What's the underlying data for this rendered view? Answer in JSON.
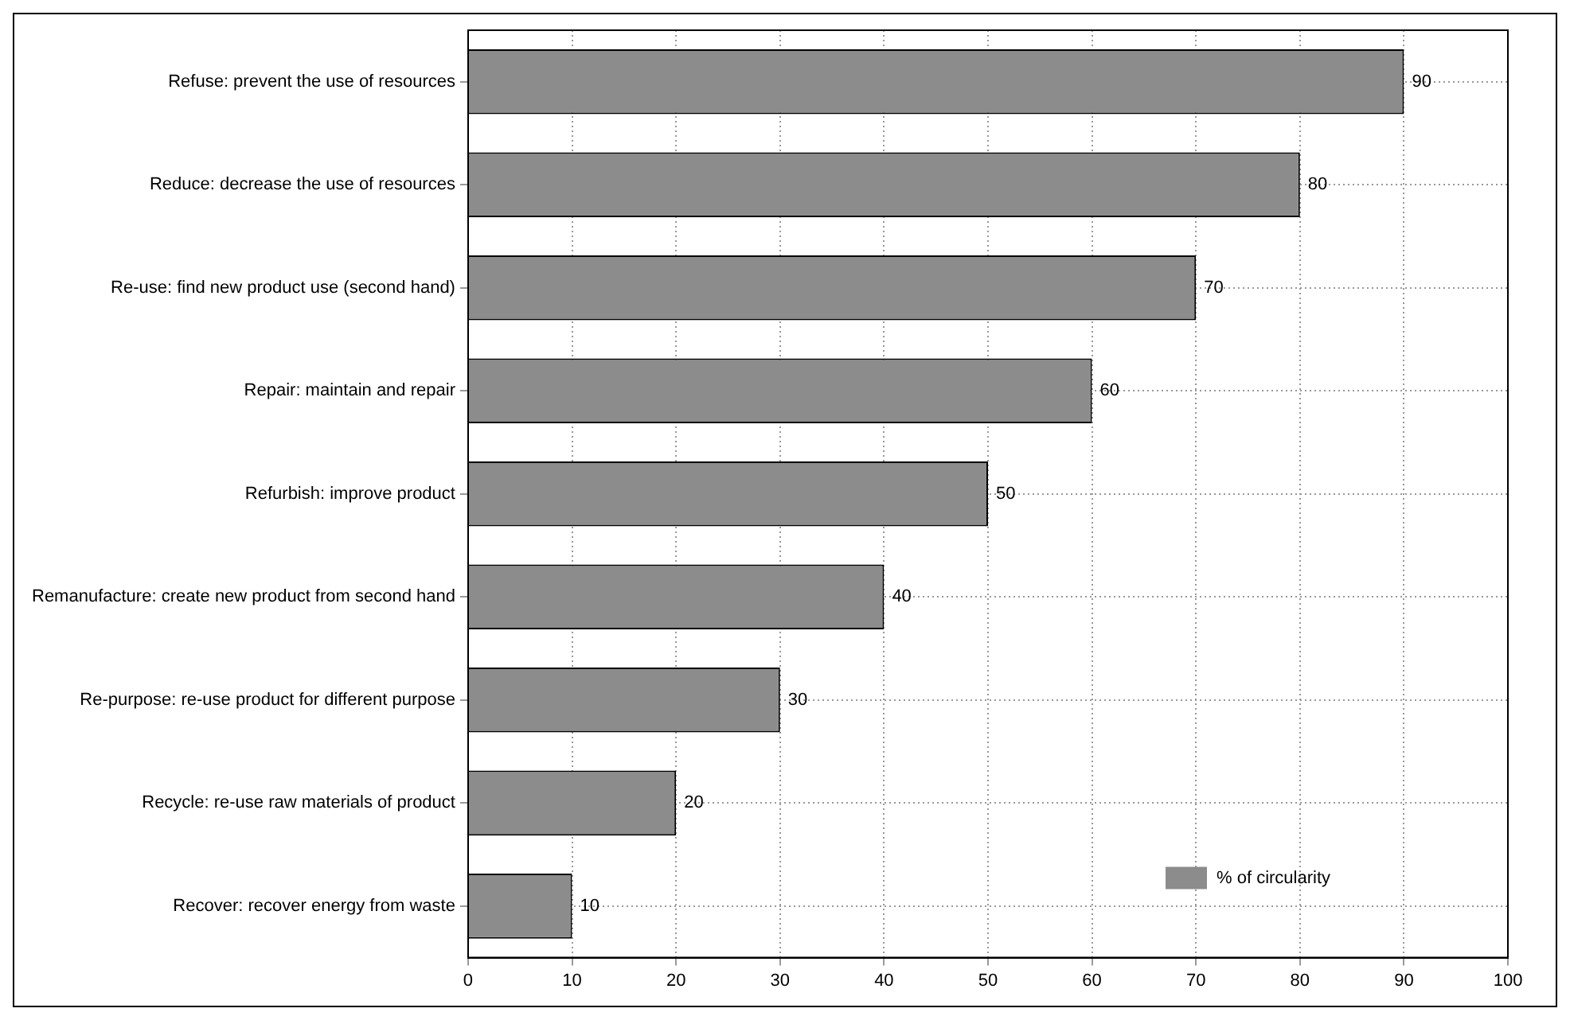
{
  "chart_data": {
    "type": "bar",
    "orientation": "horizontal",
    "categories": [
      "Refuse: prevent the use of resources",
      "Reduce: decrease the use of resources",
      "Re-use: find new product use (second hand)",
      "Repair: maintain and repair",
      "Refurbish: improve product",
      "Remanufacture: create new product from second hand",
      "Re-purpose: re-use product for different purpose",
      "Recycle: re-use raw materials of product",
      "Recover: recover energy from waste"
    ],
    "series": [
      {
        "name": "% of circularity",
        "color": "#8c8c8c",
        "values": [
          90,
          80,
          70,
          60,
          50,
          40,
          30,
          20,
          10
        ]
      }
    ],
    "xlim": [
      0,
      100
    ],
    "xticks": [
      0,
      10,
      20,
      30,
      40,
      50,
      60,
      70,
      80,
      90,
      100
    ],
    "grid": true,
    "legend": "bottom right",
    "data_labels": true
  }
}
